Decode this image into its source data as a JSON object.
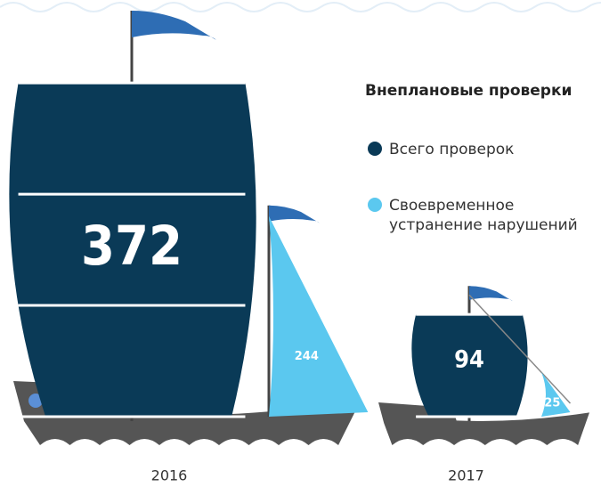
{
  "chart_data": {
    "type": "ship",
    "title": "Внеплановые проверки",
    "categories": [
      "2016",
      "2017"
    ],
    "series": [
      {
        "name": "Всего проверок",
        "color": "#0a3a57",
        "values": [
          372,
          94
        ]
      },
      {
        "name": "Своевременное устранение нарушений",
        "color": "#5bc8ef",
        "values": [
          244,
          25
        ]
      }
    ]
  }
}
